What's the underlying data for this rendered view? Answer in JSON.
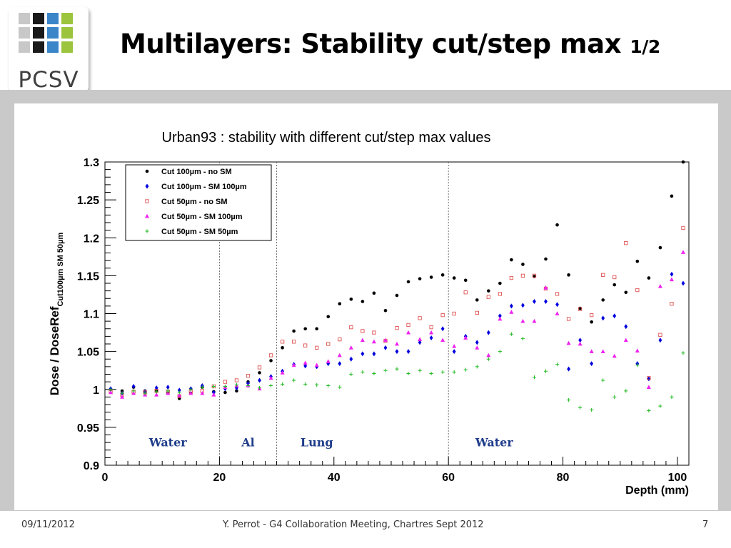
{
  "header": {
    "logo_text": "PCSV",
    "title_main": "Multilayers: Stability cut/step max ",
    "title_sub": "1/2"
  },
  "footer": {
    "date": "09/11/2012",
    "center": "Y. Perrot - G4 Collaboration Meeting, Chartres Sept 2012",
    "page": "7"
  },
  "chart_data": {
    "type": "scatter",
    "title": "Urban93 : stability with different cut/step max values",
    "xlabel": "Depth (mm)",
    "ylabel": "Dose / DoseRef",
    "ylabel_sub": "Cut100µm SM 50µm",
    "xlim": [
      0,
      102
    ],
    "ylim": [
      0.9,
      1.3
    ],
    "xticks": [
      0,
      20,
      40,
      60,
      80,
      100
    ],
    "yticks": [
      0.9,
      0.95,
      1,
      1.05,
      1.1,
      1.15,
      1.2,
      1.25,
      1.3
    ],
    "legend_position": "top-left",
    "boundaries": [
      20,
      30,
      60
    ],
    "regions": [
      {
        "label": "Water",
        "x": 11
      },
      {
        "label": "Al",
        "x": 25
      },
      {
        "label": "Lung",
        "x": 37
      },
      {
        "label": "Water",
        "x": 68
      }
    ],
    "region_label_color": "#1f3d8a",
    "x": [
      1,
      3,
      5,
      7,
      9,
      11,
      13,
      15,
      17,
      19,
      21,
      23,
      25,
      27,
      29,
      31,
      33,
      35,
      37,
      39,
      41,
      43,
      45,
      47,
      49,
      51,
      53,
      55,
      57,
      59,
      61,
      63,
      65,
      67,
      69,
      71,
      73,
      75,
      77,
      79,
      81,
      83,
      85,
      87,
      89,
      91,
      93,
      95,
      97,
      99,
      101
    ],
    "series": [
      {
        "name": "Cut 100µm - no SM",
        "marker": "dot",
        "color": "#000000",
        "values": [
          1.0,
          0.998,
          1.003,
          0.998,
          0.998,
          0.995,
          0.988,
          0.995,
          1.003,
          0.997,
          0.996,
          0.998,
          1.01,
          1.022,
          1.038,
          1.055,
          1.077,
          1.08,
          1.08,
          1.096,
          1.113,
          1.119,
          1.116,
          1.127,
          1.104,
          1.124,
          1.142,
          1.146,
          1.148,
          1.151,
          1.147,
          1.144,
          1.118,
          1.13,
          1.14,
          1.171,
          1.165,
          1.149,
          1.172,
          1.217,
          1.151,
          1.107,
          1.089,
          1.118,
          1.138,
          1.128,
          1.169,
          1.147,
          1.187,
          1.255,
          1.3
        ]
      },
      {
        "name": "Cut 100µm - SM 100µm",
        "marker": "diamond",
        "color": "#0000dd",
        "values": [
          1.001,
          0.995,
          1.004,
          0.997,
          1.002,
          1.003,
          0.999,
          1.001,
          1.005,
          0.996,
          1.001,
          1.002,
          1.008,
          1.012,
          1.017,
          1.024,
          1.033,
          1.031,
          1.03,
          1.034,
          1.034,
          1.04,
          1.047,
          1.047,
          1.055,
          1.05,
          1.05,
          1.062,
          1.068,
          1.08,
          1.05,
          1.07,
          1.062,
          1.075,
          1.097,
          1.11,
          1.111,
          1.116,
          1.116,
          1.112,
          1.027,
          1.065,
          1.034,
          1.094,
          1.097,
          1.083,
          1.034,
          1.014,
          1.065,
          1.152,
          1.14
        ]
      },
      {
        "name": "Cut 50µm - no SM",
        "marker": "square",
        "color": "#e05050",
        "values": [
          0.997,
          0.993,
          0.997,
          0.996,
          0.998,
          0.997,
          0.991,
          0.997,
          0.998,
          1.004,
          1.01,
          1.012,
          1.018,
          1.029,
          1.045,
          1.063,
          1.063,
          1.058,
          1.055,
          1.06,
          1.066,
          1.082,
          1.077,
          1.075,
          1.064,
          1.081,
          1.085,
          1.094,
          1.082,
          1.098,
          1.1,
          1.128,
          1.101,
          1.122,
          1.126,
          1.147,
          1.15,
          1.15,
          1.133,
          1.126,
          1.093,
          1.106,
          1.098,
          1.151,
          1.148,
          1.193,
          1.131,
          1.015,
          1.072,
          1.113,
          1.213
        ]
      },
      {
        "name": "Cut 50µm - SM 100µm",
        "marker": "triangle",
        "color": "#ee22ee",
        "values": [
          0.996,
          0.99,
          0.995,
          0.993,
          0.993,
          0.995,
          0.992,
          0.995,
          0.995,
          0.993,
          1.003,
          1.005,
          1.005,
          1.001,
          1.015,
          1.022,
          1.032,
          1.035,
          1.032,
          1.037,
          1.045,
          1.055,
          1.065,
          1.063,
          1.065,
          1.06,
          1.075,
          1.066,
          1.075,
          1.065,
          1.057,
          1.068,
          1.055,
          1.045,
          1.093,
          1.102,
          1.09,
          1.09,
          1.134,
          1.1,
          1.061,
          1.06,
          1.05,
          1.05,
          1.044,
          1.065,
          1.051,
          1.003,
          1.136,
          1.145,
          1.181
        ]
      },
      {
        "name": "Cut 50µm - SM 50µm",
        "marker": "plus",
        "color": "#22bb22",
        "values": [
          1.0,
          0.995,
          0.998,
          0.995,
          0.997,
          0.998,
          0.996,
          1.0,
          1.003,
          1.004,
          1.004,
          1.006,
          1.005,
          1.002,
          1.005,
          1.007,
          1.012,
          1.007,
          1.006,
          1.005,
          1.003,
          1.02,
          1.023,
          1.021,
          1.025,
          1.027,
          1.021,
          1.025,
          1.021,
          1.023,
          1.023,
          1.026,
          1.03,
          1.04,
          1.05,
          1.073,
          1.067,
          1.016,
          1.024,
          1.033,
          0.986,
          0.976,
          0.973,
          1.012,
          0.99,
          0.998,
          1.032,
          0.972,
          0.978,
          0.99,
          1.048
        ]
      }
    ]
  }
}
